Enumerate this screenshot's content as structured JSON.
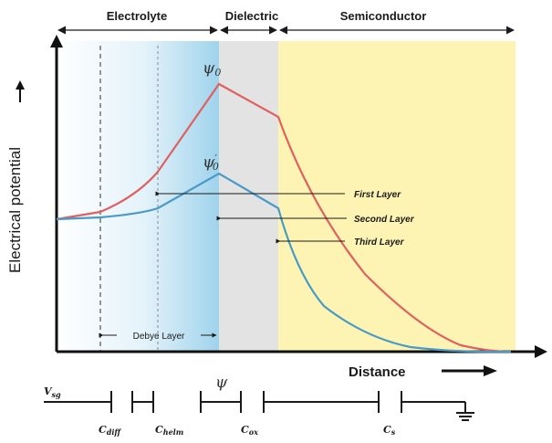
{
  "regions": {
    "electrolyte": "Electrolyte",
    "dielectric": "Dielectric",
    "semiconductor": "Semiconductor"
  },
  "axes": {
    "y_title": "Electrical potential",
    "x_title": "Distance"
  },
  "potentials": {
    "psi0": {
      "symbol": "ψ",
      "sub": "0"
    },
    "psi0_prime": {
      "symbol": "ψ",
      "sub": "0",
      "prime": "′"
    }
  },
  "layers": {
    "first": "First Layer",
    "second": "Second Layer",
    "third": "Third Layer"
  },
  "debye": "Debye Layer",
  "circuit": {
    "source": {
      "main": "V",
      "sub": "sg"
    },
    "psi_node": "ψ",
    "c_diff": {
      "main": "C",
      "sub": "diff"
    },
    "c_helm": {
      "main": "C",
      "sub": "helm"
    },
    "c_ox": {
      "main": "C",
      "sub": "ox"
    },
    "c_s": {
      "main": "C",
      "sub": "s"
    }
  },
  "colors": {
    "red_curve": "#e06060",
    "blue_curve": "#4a9ac8",
    "dielectric_fill": "#e3e3e3",
    "semiconductor_fill": "#fdf4b3",
    "electrolyte_gradient_end": "#9fd3ec"
  }
}
